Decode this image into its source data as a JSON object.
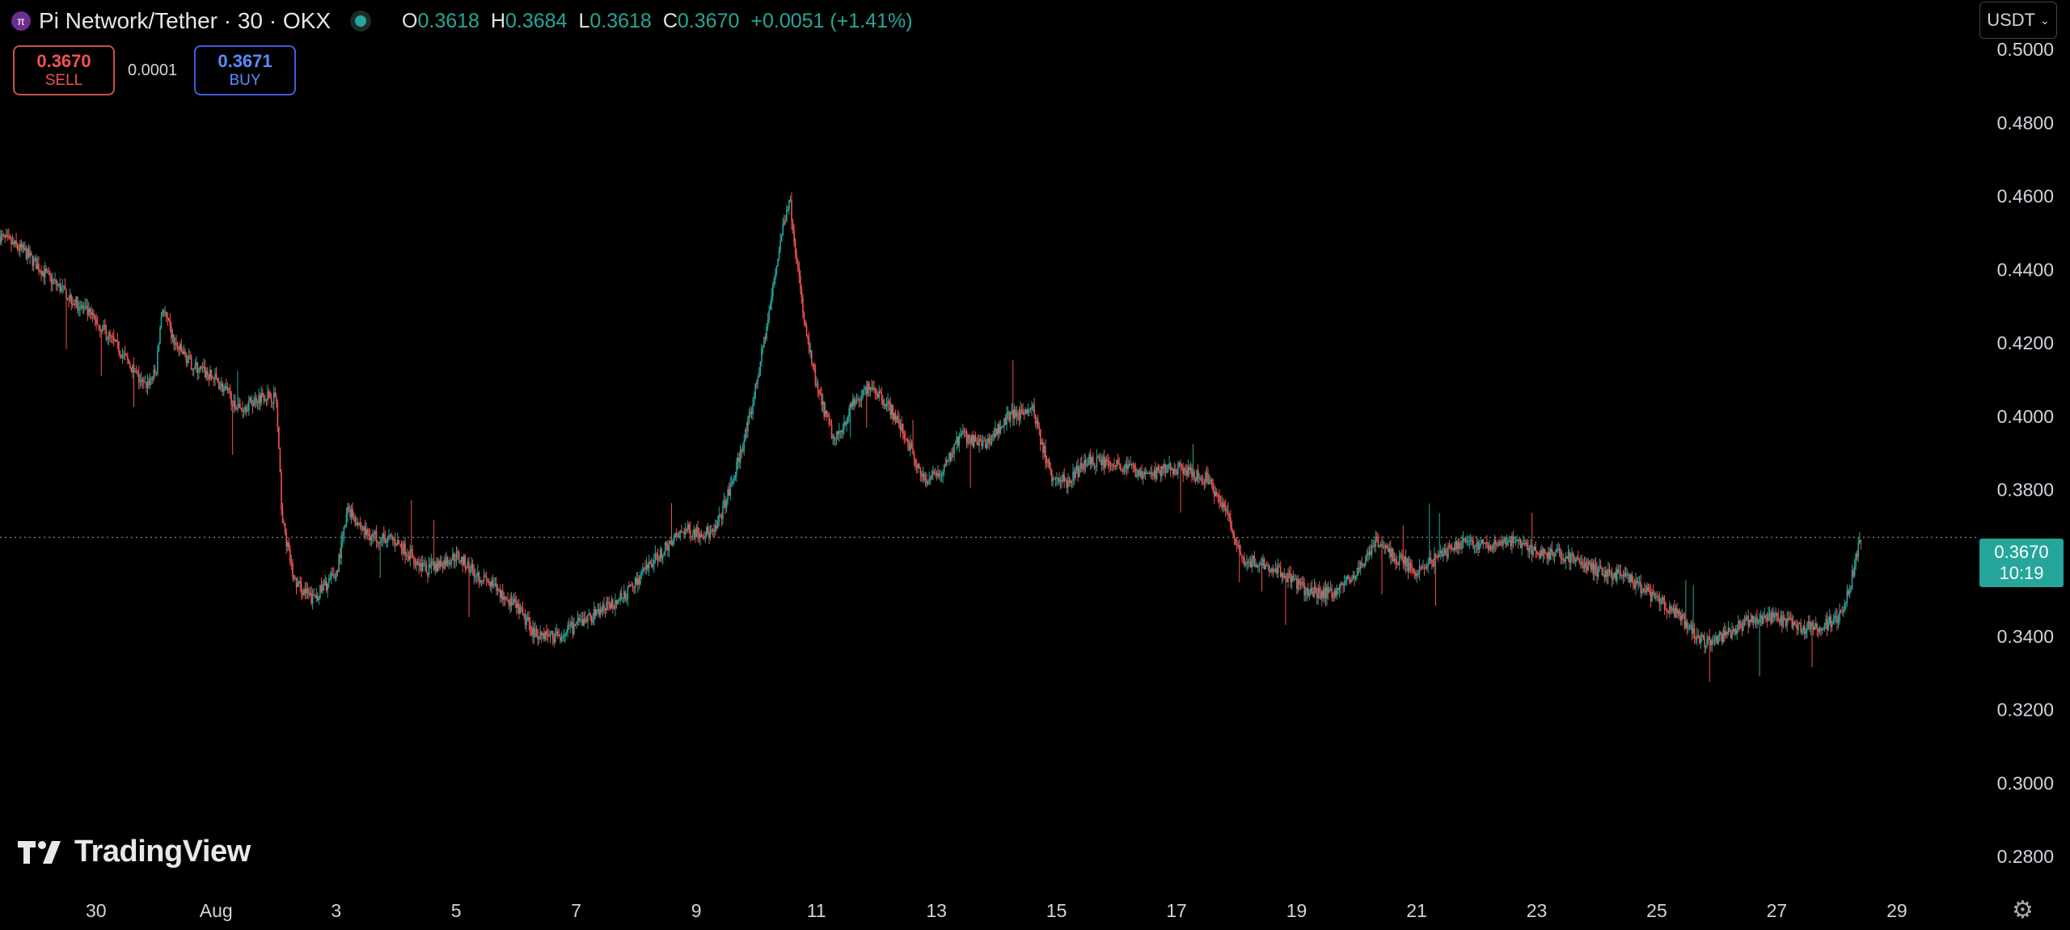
{
  "header": {
    "symbol": "Pi Network/Tether · 30 · OKX",
    "ohlc": {
      "o_label": "O",
      "o": "0.3618",
      "h_label": "H",
      "h": "0.3684",
      "l_label": "L",
      "l": "0.3618",
      "c_label": "C",
      "c": "0.3670",
      "change": "+0.0051 (+1.41%)"
    }
  },
  "trade": {
    "sell_price": "0.3670",
    "sell_label": "SELL",
    "spread": "0.0001",
    "buy_price": "0.3671",
    "buy_label": "BUY"
  },
  "currency": {
    "label": "USDT"
  },
  "last_price": {
    "price": "0.3670",
    "countdown": "10:19"
  },
  "brand": {
    "name": "TradingView"
  },
  "colors": {
    "up": "#26a69a",
    "down": "#ef5350",
    "background": "#000000",
    "axis_text": "#d1d4dc"
  },
  "chart_data": {
    "type": "candlestick",
    "title": "",
    "yaxis_ticks": [
      "0.5000",
      "0.4800",
      "0.4600",
      "0.4400",
      "0.4200",
      "0.4000",
      "0.3800",
      "0.3400",
      "0.3200",
      "0.3000",
      "0.2800"
    ],
    "xaxis_ticks": [
      "30",
      "Aug",
      "3",
      "5",
      "7",
      "9",
      "11",
      "13",
      "15",
      "17",
      "19",
      "21",
      "23",
      "25",
      "27",
      "29"
    ],
    "x_tick_days": [
      30,
      32,
      34,
      36,
      38,
      40,
      42,
      44,
      46,
      48,
      50,
      52,
      54,
      56,
      58,
      60
    ],
    "ylim": [
      0.271,
      0.5135
    ],
    "xlim_days": [
      28.4,
      61.2
    ],
    "last_price": 0.367,
    "series": [
      {
        "points": [
          [
            28.4,
            0.449
          ],
          [
            28.8,
            0.445
          ],
          [
            29.2,
            0.438
          ],
          [
            29.6,
            0.432
          ],
          [
            30.0,
            0.426
          ],
          [
            30.4,
            0.418
          ],
          [
            30.8,
            0.408
          ],
          [
            31.0,
            0.412
          ],
          [
            31.1,
            0.43
          ],
          [
            31.3,
            0.42
          ],
          [
            31.6,
            0.414
          ],
          [
            32.0,
            0.41
          ],
          [
            32.4,
            0.402
          ],
          [
            32.8,
            0.406
          ],
          [
            33.0,
            0.405
          ],
          [
            33.1,
            0.372
          ],
          [
            33.3,
            0.355
          ],
          [
            33.6,
            0.35
          ],
          [
            34.0,
            0.357
          ],
          [
            34.2,
            0.375
          ],
          [
            34.5,
            0.368
          ],
          [
            35.0,
            0.366
          ],
          [
            35.5,
            0.358
          ],
          [
            36.0,
            0.362
          ],
          [
            36.5,
            0.355
          ],
          [
            37.0,
            0.348
          ],
          [
            37.3,
            0.341
          ],
          [
            37.7,
            0.34
          ],
          [
            38.2,
            0.345
          ],
          [
            38.8,
            0.351
          ],
          [
            39.3,
            0.361
          ],
          [
            39.8,
            0.369
          ],
          [
            40.3,
            0.368
          ],
          [
            40.6,
            0.382
          ],
          [
            40.9,
            0.4
          ],
          [
            41.2,
            0.427
          ],
          [
            41.4,
            0.448
          ],
          [
            41.55,
            0.46
          ],
          [
            41.8,
            0.425
          ],
          [
            42.0,
            0.408
          ],
          [
            42.3,
            0.393
          ],
          [
            42.6,
            0.403
          ],
          [
            42.9,
            0.409
          ],
          [
            43.2,
            0.403
          ],
          [
            43.5,
            0.394
          ],
          [
            43.8,
            0.382
          ],
          [
            44.1,
            0.385
          ],
          [
            44.4,
            0.395
          ],
          [
            44.8,
            0.392
          ],
          [
            45.2,
            0.4
          ],
          [
            45.6,
            0.402
          ],
          [
            45.9,
            0.384
          ],
          [
            46.2,
            0.382
          ],
          [
            46.5,
            0.388
          ],
          [
            47.0,
            0.387
          ],
          [
            47.5,
            0.384
          ],
          [
            48.0,
            0.386
          ],
          [
            48.5,
            0.383
          ],
          [
            48.8,
            0.375
          ],
          [
            49.1,
            0.361
          ],
          [
            49.4,
            0.36
          ],
          [
            49.8,
            0.357
          ],
          [
            50.2,
            0.352
          ],
          [
            50.6,
            0.352
          ],
          [
            51.0,
            0.357
          ],
          [
            51.3,
            0.366
          ],
          [
            51.6,
            0.362
          ],
          [
            52.0,
            0.358
          ],
          [
            52.4,
            0.362
          ],
          [
            52.8,
            0.366
          ],
          [
            53.2,
            0.365
          ],
          [
            53.6,
            0.366
          ],
          [
            54.0,
            0.363
          ],
          [
            54.5,
            0.362
          ],
          [
            55.0,
            0.358
          ],
          [
            55.5,
            0.356
          ],
          [
            56.0,
            0.35
          ],
          [
            56.4,
            0.345
          ],
          [
            56.8,
            0.338
          ],
          [
            57.2,
            0.341
          ],
          [
            57.6,
            0.345
          ],
          [
            58.0,
            0.345
          ],
          [
            58.4,
            0.342
          ],
          [
            58.8,
            0.343
          ],
          [
            59.0,
            0.345
          ],
          [
            59.2,
            0.352
          ],
          [
            59.35,
            0.364
          ],
          [
            59.42,
            0.367
          ]
        ]
      }
    ]
  }
}
